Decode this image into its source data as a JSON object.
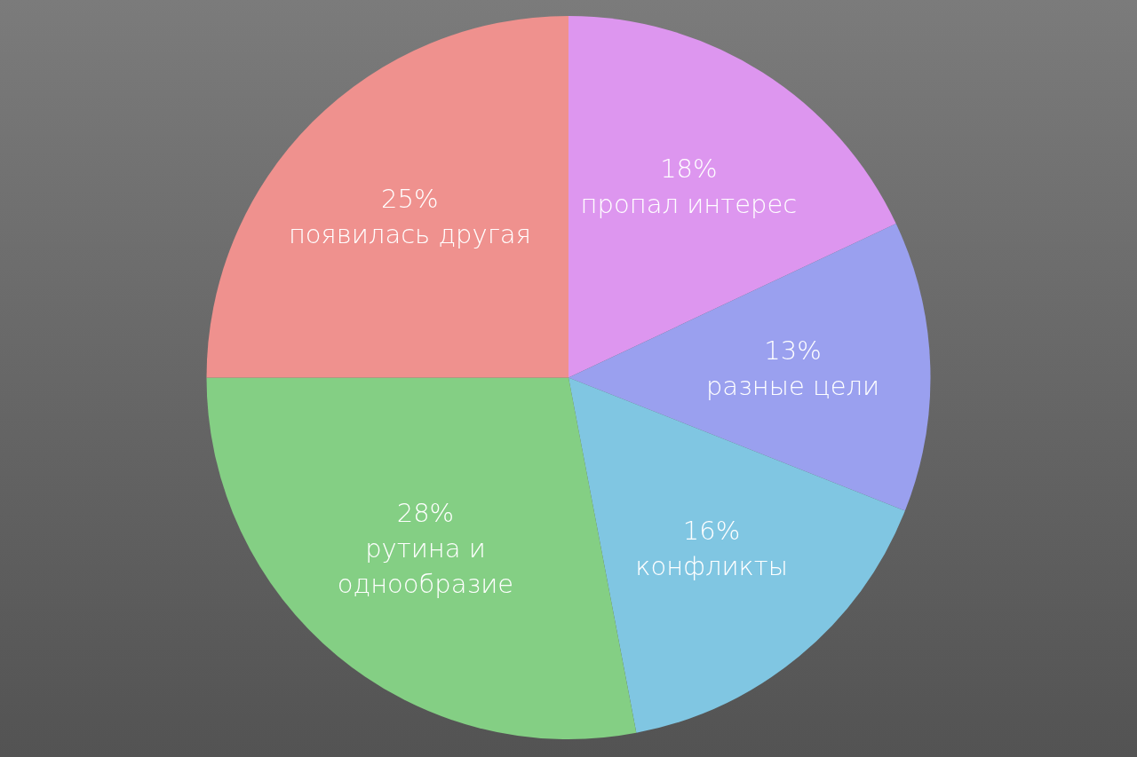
{
  "chart_data": {
    "type": "pie",
    "categories": [
      "пропал интерес",
      "разные цели",
      "конфликты",
      "рутина и однообразие",
      "появилась другая"
    ],
    "values": [
      18,
      13,
      16,
      28,
      25
    ],
    "colors": [
      "#dd96ef",
      "#9aa0ef",
      "#80c6e2",
      "#84cf84",
      "#ef918e"
    ],
    "value_labels": [
      "18%",
      "13%",
      "16%",
      "28%",
      "25%"
    ],
    "legend": false
  }
}
